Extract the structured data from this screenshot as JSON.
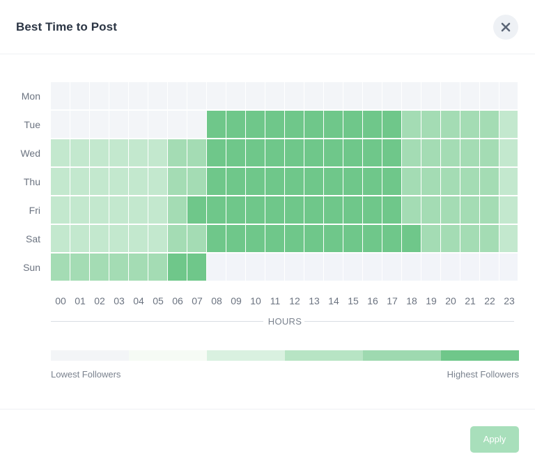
{
  "modal": {
    "title": "Best Time to Post",
    "close_icon": "close-icon",
    "apply_label": "Apply"
  },
  "heatmap": {
    "days": [
      "Mon",
      "Tue",
      "Wed",
      "Thu",
      "Fri",
      "Sat",
      "Sun"
    ],
    "hours": [
      "00",
      "01",
      "02",
      "03",
      "04",
      "05",
      "06",
      "07",
      "08",
      "09",
      "10",
      "11",
      "12",
      "13",
      "14",
      "15",
      "16",
      "17",
      "18",
      "19",
      "20",
      "21",
      "22",
      "23"
    ],
    "axis_label": "HOURS",
    "levels": [
      [
        0,
        0,
        0,
        0,
        0,
        0,
        0,
        0,
        0,
        0,
        0,
        0,
        0,
        0,
        0,
        0,
        0,
        0,
        0,
        0,
        0,
        0,
        0,
        0
      ],
      [
        0,
        0,
        0,
        0,
        0,
        0,
        0,
        0,
        5,
        5,
        5,
        5,
        5,
        5,
        5,
        5,
        5,
        5,
        3,
        3,
        3,
        3,
        3,
        2
      ],
      [
        2,
        2,
        2,
        2,
        2,
        2,
        3,
        3,
        5,
        5,
        5,
        5,
        5,
        5,
        5,
        5,
        5,
        5,
        3,
        3,
        3,
        3,
        3,
        2
      ],
      [
        2,
        2,
        2,
        2,
        2,
        2,
        3,
        3,
        5,
        5,
        5,
        5,
        5,
        5,
        5,
        5,
        5,
        5,
        3,
        3,
        3,
        3,
        3,
        2
      ],
      [
        2,
        2,
        2,
        2,
        2,
        2,
        3,
        5,
        5,
        5,
        5,
        5,
        5,
        5,
        5,
        5,
        5,
        5,
        3,
        3,
        3,
        3,
        3,
        2
      ],
      [
        2,
        2,
        2,
        2,
        2,
        2,
        3,
        3,
        5,
        5,
        5,
        5,
        5,
        5,
        5,
        5,
        5,
        5,
        5,
        3,
        3,
        3,
        3,
        2
      ],
      [
        3,
        3,
        3,
        3,
        3,
        3,
        5,
        5,
        0,
        0,
        0,
        0,
        0,
        0,
        0,
        0,
        0,
        0,
        0,
        0,
        0,
        0,
        0,
        0
      ]
    ]
  },
  "legend": {
    "low_label": "Lowest Followers",
    "high_label": "Highest Followers",
    "colors": [
      "#f3f5f7",
      "#f6fbf5",
      "#d9f1e0",
      "#b7e4c4",
      "#9ed9b0",
      "#6fc78a"
    ]
  },
  "colors": {
    "cell_levels": [
      "#f3f5f8",
      "#f6fbf5",
      "#c3e8ce",
      "#a4dcb4",
      "#8fd3a3",
      "#6fc78a"
    ],
    "sun_empty": "#f2f4f9",
    "apply_bg": "#a8dfbb"
  }
}
